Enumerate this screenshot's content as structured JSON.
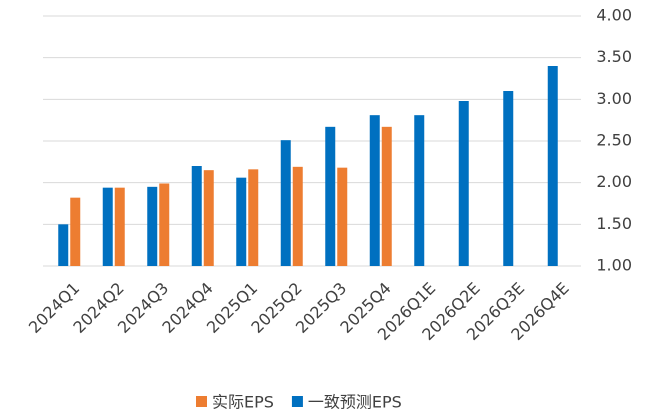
{
  "chart_data": {
    "type": "bar",
    "categories": [
      "2024Q1",
      "2024Q2",
      "2024Q3",
      "2024Q4",
      "2025Q1",
      "2025Q2",
      "2025Q3",
      "2025Q4",
      "2026Q1E",
      "2026Q2E",
      "2026Q3E",
      "2026Q4E"
    ],
    "series": [
      {
        "name": "实际EPS",
        "color": "#ed7d31",
        "values": [
          1.82,
          1.94,
          1.99,
          2.15,
          2.16,
          2.19,
          2.18,
          2.67,
          null,
          null,
          null,
          null
        ]
      },
      {
        "name": "一致预测EPS",
        "color": "#0070c0",
        "values": [
          1.5,
          1.94,
          1.95,
          2.2,
          2.06,
          2.51,
          2.67,
          2.81,
          2.81,
          2.98,
          3.1,
          3.4
        ]
      }
    ],
    "ylim": [
      1,
      4
    ],
    "yticks": [
      {
        "value": 1,
        "label": "1.00"
      },
      {
        "value": 1.5,
        "label": "1.50"
      },
      {
        "value": 2,
        "label": "2.00"
      },
      {
        "value": 2.5,
        "label": "2.50"
      },
      {
        "value": 3,
        "label": "3.00"
      },
      {
        "value": 3.5,
        "label": "3.50"
      },
      {
        "value": 4,
        "label": "4.00"
      }
    ],
    "grid": true,
    "legend": "bottom"
  }
}
